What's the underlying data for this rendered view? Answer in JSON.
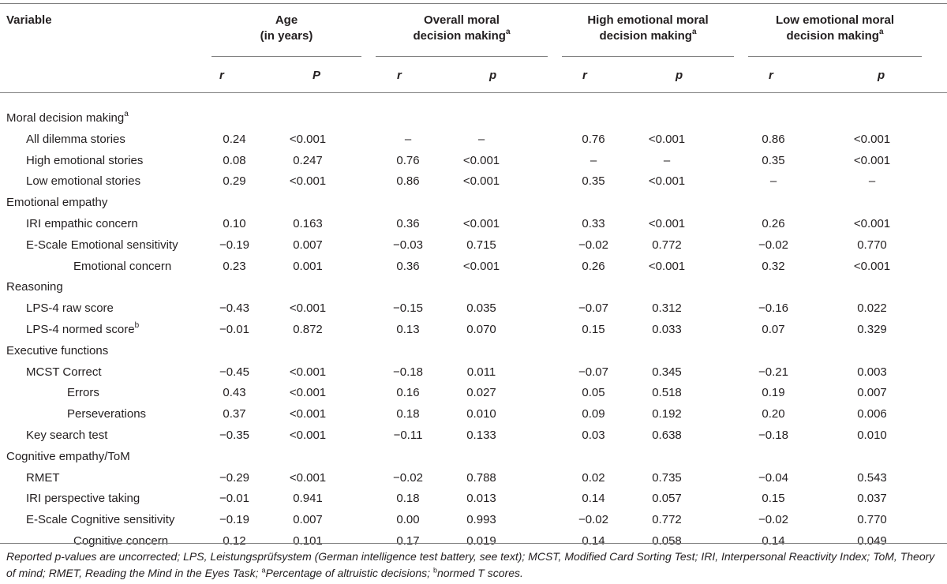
{
  "header": {
    "variable": "Variable",
    "groups": [
      {
        "line1": "Age",
        "line2": "(in years)",
        "sup": ""
      },
      {
        "line1": "Overall moral",
        "line2": "decision making",
        "sup": "a"
      },
      {
        "line1": "High emotional moral",
        "line2": "decision making",
        "sup": "a"
      },
      {
        "line1": "Low emotional moral",
        "line2": "decision making",
        "sup": "a"
      }
    ],
    "subheaders": [
      "r",
      "P",
      "r",
      "p",
      "r",
      "p",
      "r",
      "p"
    ]
  },
  "rows": [
    {
      "label": "Moral decision making",
      "sup": "a",
      "indent": 0,
      "values": []
    },
    {
      "label": "All dilemma stories",
      "sup": "",
      "indent": 1,
      "values": [
        "0.24",
        "<0.001",
        "–",
        "–",
        "0.76",
        "<0.001",
        "0.86",
        "<0.001"
      ]
    },
    {
      "label": "High emotional stories",
      "sup": "",
      "indent": 1,
      "values": [
        "0.08",
        "0.247",
        "0.76",
        "<0.001",
        "–",
        "–",
        "0.35",
        "<0.001"
      ]
    },
    {
      "label": "Low emotional stories",
      "sup": "",
      "indent": 1,
      "values": [
        "0.29",
        "<0.001",
        "0.86",
        "<0.001",
        "0.35",
        "<0.001",
        "–",
        "–"
      ]
    },
    {
      "label": "Emotional empathy",
      "sup": "",
      "indent": 0,
      "values": []
    },
    {
      "label": "IRI empathic concern",
      "sup": "",
      "indent": 1,
      "values": [
        "0.10",
        "0.163",
        "0.36",
        "<0.001",
        "0.33",
        "<0.001",
        "0.26",
        "<0.001"
      ]
    },
    {
      "label": "E-Scale Emotional sensitivity",
      "sup": "",
      "indent": 1,
      "values": [
        "−0.19",
        "0.007",
        "−0.03",
        "0.715",
        "−0.02",
        "0.772",
        "−0.02",
        "0.770"
      ]
    },
    {
      "label": "Emotional concern",
      "sup": "",
      "indent": 3,
      "values": [
        "0.23",
        "0.001",
        "0.36",
        "<0.001",
        "0.26",
        "<0.001",
        "0.32",
        "<0.001"
      ]
    },
    {
      "label": "Reasoning",
      "sup": "",
      "indent": 0,
      "values": []
    },
    {
      "label": "LPS-4 raw score",
      "sup": "",
      "indent": 1,
      "values": [
        "−0.43",
        "<0.001",
        "−0.15",
        "0.035",
        "−0.07",
        "0.312",
        "−0.16",
        "0.022"
      ]
    },
    {
      "label": "LPS-4 normed score",
      "sup": "b",
      "indent": 1,
      "values": [
        "−0.01",
        "0.872",
        "0.13",
        "0.070",
        "0.15",
        "0.033",
        "0.07",
        "0.329"
      ]
    },
    {
      "label": "Executive functions",
      "sup": "",
      "indent": 0,
      "values": []
    },
    {
      "label": "MCST Correct",
      "sup": "",
      "indent": 1,
      "values": [
        "−0.45",
        "<0.001",
        "−0.18",
        "0.011",
        "−0.07",
        "0.345",
        "−0.21",
        "0.003"
      ]
    },
    {
      "label": "Errors",
      "sup": "",
      "indent": 2,
      "values": [
        "0.43",
        "<0.001",
        "0.16",
        "0.027",
        "0.05",
        "0.518",
        "0.19",
        "0.007"
      ]
    },
    {
      "label": "Perseverations",
      "sup": "",
      "indent": 2,
      "values": [
        "0.37",
        "<0.001",
        "0.18",
        "0.010",
        "0.09",
        "0.192",
        "0.20",
        "0.006"
      ]
    },
    {
      "label": "Key search test",
      "sup": "",
      "indent": 1,
      "values": [
        "−0.35",
        "<0.001",
        "−0.11",
        "0.133",
        "0.03",
        "0.638",
        "−0.18",
        "0.010"
      ]
    },
    {
      "label": "Cognitive empathy/ToM",
      "sup": "",
      "indent": 0,
      "values": []
    },
    {
      "label": "RMET",
      "sup": "",
      "indent": 1,
      "values": [
        "−0.29",
        "<0.001",
        "−0.02",
        "0.788",
        "0.02",
        "0.735",
        "−0.04",
        "0.543"
      ]
    },
    {
      "label": "IRI perspective taking",
      "sup": "",
      "indent": 1,
      "values": [
        "−0.01",
        "0.941",
        "0.18",
        "0.013",
        "0.14",
        "0.057",
        "0.15",
        "0.037"
      ]
    },
    {
      "label": "E-Scale Cognitive sensitivity",
      "sup": "",
      "indent": 1,
      "values": [
        "−0.19",
        "0.007",
        "0.00",
        "0.993",
        "−0.02",
        "0.772",
        "−0.02",
        "0.770"
      ]
    },
    {
      "label": "Cognitive concern",
      "sup": "",
      "indent": 3,
      "values": [
        "0.12",
        "0.101",
        "0.17",
        "0.019",
        "0.14",
        "0.058",
        "0.14",
        "0.049"
      ]
    }
  ],
  "footnote": {
    "main": "Reported p-values are uncorrected; LPS, Leistungsprüfsystem (German intelligence test battery, see text); MCST, Modified Card Sorting Test; IRI, Interpersonal Reactivity Index; ToM, Theory of mind; RMET, Reading the Mind in the Eyes Task; ",
    "sup_a": "a",
    "note_a": "Percentage of altruistic decisions; ",
    "sup_b": "b",
    "note_b": "normed T scores."
  }
}
